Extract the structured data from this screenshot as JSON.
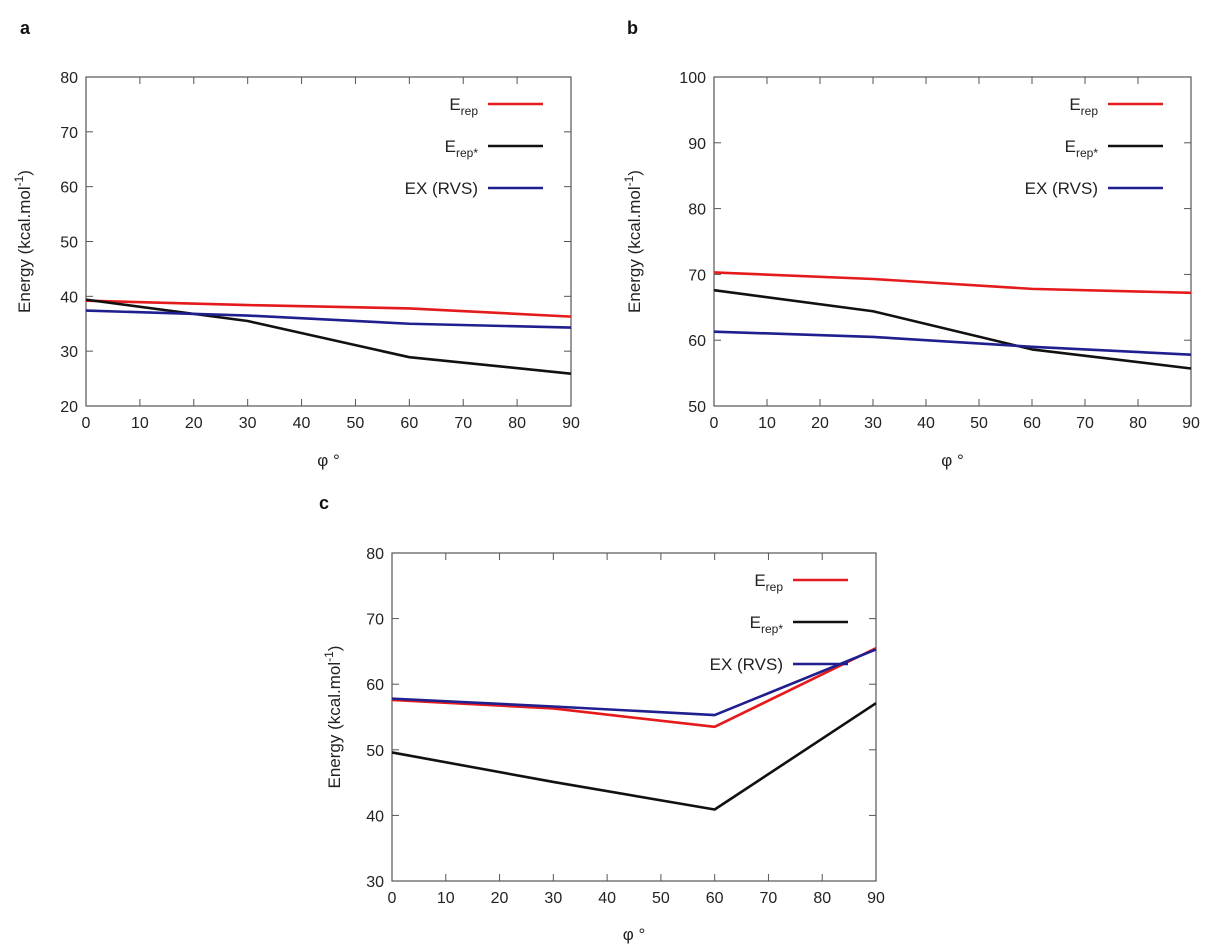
{
  "chart_data": [
    {
      "panel_label": "a",
      "type": "line",
      "x": [
        0,
        30,
        60,
        90
      ],
      "xlim": [
        0,
        90
      ],
      "ylim": [
        20,
        80
      ],
      "xticks": [
        0,
        10,
        20,
        30,
        40,
        50,
        60,
        70,
        80,
        90
      ],
      "yticks": [
        20,
        30,
        40,
        50,
        60,
        70,
        80
      ],
      "xlabel": "φ °",
      "ylabel": "Energy (kcal.mol",
      "ylabel_sup": "-1",
      "ylabel_close": ")",
      "legend_position": "top-right",
      "grid": false,
      "series": [
        {
          "name": "E",
          "name_sub": "rep",
          "color": "#e41a1c",
          "values": [
            39.2,
            38.4,
            37.8,
            36.3
          ]
        },
        {
          "name": "E",
          "name_sub": "rep*",
          "color": "#111111",
          "values": [
            39.4,
            35.5,
            28.9,
            25.9
          ]
        },
        {
          "name": "EX (RVS)",
          "name_sub": "",
          "color": "#1f1f8f",
          "values": [
            37.4,
            36.5,
            35.0,
            34.3
          ]
        }
      ]
    },
    {
      "panel_label": "b",
      "type": "line",
      "x": [
        0,
        30,
        60,
        90
      ],
      "xlim": [
        0,
        90
      ],
      "ylim": [
        50,
        100
      ],
      "xticks": [
        0,
        10,
        20,
        30,
        40,
        50,
        60,
        70,
        80,
        90
      ],
      "yticks": [
        50,
        60,
        70,
        80,
        90,
        100
      ],
      "xlabel": "φ °",
      "ylabel": "Energy (kcal.mol",
      "ylabel_sup": "-1",
      "ylabel_close": ")",
      "legend_position": "top-right",
      "grid": false,
      "series": [
        {
          "name": "E",
          "name_sub": "rep",
          "color": "#e41a1c",
          "values": [
            70.3,
            69.3,
            67.8,
            67.2
          ]
        },
        {
          "name": "E",
          "name_sub": "rep*",
          "color": "#111111",
          "values": [
            67.6,
            64.4,
            58.6,
            55.7
          ]
        },
        {
          "name": "EX (RVS)",
          "name_sub": "",
          "color": "#1f1f8f",
          "values": [
            61.3,
            60.5,
            59.0,
            57.8
          ]
        }
      ]
    },
    {
      "panel_label": "c",
      "type": "line",
      "x": [
        0,
        30,
        60,
        90
      ],
      "xlim": [
        0,
        90
      ],
      "ylim": [
        30,
        80
      ],
      "xticks": [
        0,
        10,
        20,
        30,
        40,
        50,
        60,
        70,
        80,
        90
      ],
      "yticks": [
        30,
        40,
        50,
        60,
        70,
        80
      ],
      "xlabel": "φ °",
      "ylabel": "Energy (kcal.mol",
      "ylabel_sup": "-1",
      "ylabel_close": ")",
      "legend_position": "top-right",
      "grid": false,
      "series": [
        {
          "name": "E",
          "name_sub": "rep",
          "color": "#e41a1c",
          "values": [
            57.6,
            56.3,
            53.5,
            65.5
          ]
        },
        {
          "name": "E",
          "name_sub": "rep*",
          "color": "#111111",
          "values": [
            49.6,
            45.1,
            40.9,
            57.1
          ]
        },
        {
          "name": "EX (RVS)",
          "name_sub": "",
          "color": "#1f1f8f",
          "values": [
            57.8,
            56.6,
            55.3,
            65.3
          ]
        }
      ]
    }
  ]
}
